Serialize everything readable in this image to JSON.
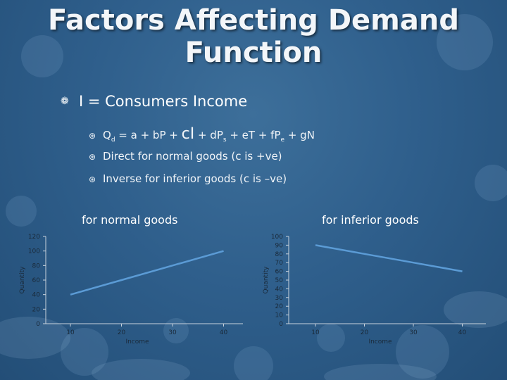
{
  "slide": {
    "title_line1": "Factors Affecting Demand",
    "title_line2": "Function",
    "bullet": "I = Consumers Income",
    "equation": {
      "part1": "Q",
      "part1_sub": "d",
      "part2": " = a + bP + ",
      "big": "cI",
      "part3": " + dP",
      "part3_sub": "s",
      "part4": " + eT + fP",
      "part4_sub": "e",
      "part5": " + gN"
    },
    "sub2": "Direct for normal goods (c is +ve)",
    "sub3": "Inverse for inferior goods (c is –ve)"
  },
  "colors": {
    "line": "#5b9bd5",
    "axis": "#c8d2dc",
    "tick": "#1a2a3a"
  },
  "chart_data": [
    {
      "type": "line",
      "title": "for normal goods",
      "xlabel": "Income",
      "ylabel": "Quantity",
      "x": [
        10,
        20,
        30,
        40
      ],
      "series": [
        {
          "values": [
            40,
            60,
            80,
            100
          ]
        }
      ],
      "ylim": [
        0,
        120
      ],
      "yticks": [
        0,
        20,
        40,
        60,
        80,
        100,
        120
      ],
      "grid": false
    },
    {
      "type": "line",
      "title": "for inferior goods",
      "xlabel": "Income",
      "ylabel": "Quantity",
      "x": [
        10,
        20,
        30,
        40
      ],
      "series": [
        {
          "values": [
            90,
            80,
            70,
            60
          ]
        }
      ],
      "ylim": [
        0,
        100
      ],
      "yticks": [
        0,
        10,
        20,
        30,
        40,
        50,
        60,
        70,
        80,
        90,
        100
      ],
      "grid": false
    }
  ]
}
